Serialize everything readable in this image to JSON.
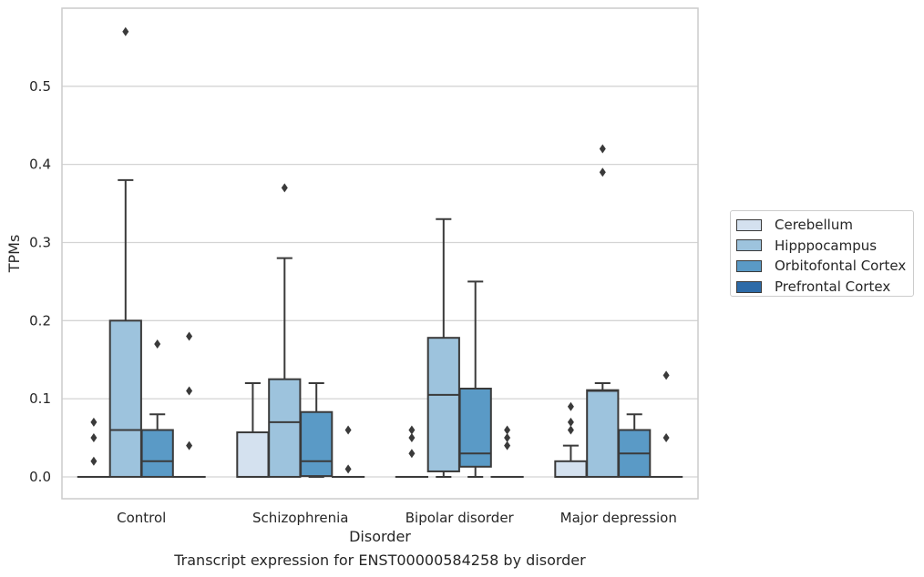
{
  "caption": "Transcript expression for ENST00000584258 by disorder",
  "chart_data": {
    "type": "box",
    "title": "",
    "xlabel": "Disorder",
    "ylabel": "TPMs",
    "ylim": [
      -0.028,
      0.6
    ],
    "yticks": [
      0.0,
      0.1,
      0.2,
      0.3,
      0.4,
      0.5
    ],
    "ytick_labels": [
      "0.0",
      "0.1",
      "0.2",
      "0.3",
      "0.4",
      "0.5"
    ],
    "grid": "horizontal",
    "legend_position": "right",
    "categories": [
      "Control",
      "Schizophrenia",
      "Bipolar disorder",
      "Major depression"
    ],
    "series": [
      {
        "name": "Cerebellum",
        "color": "#d4e1ef",
        "boxes": [
          {
            "q1": 0,
            "median": 0,
            "q3": 0,
            "whisker_low": 0,
            "whisker_high": 0,
            "outliers": [
              0.02,
              0.05,
              0.07
            ]
          },
          {
            "q1": 0,
            "median": 0,
            "q3": 0.057,
            "whisker_low": 0,
            "whisker_high": 0.12,
            "outliers": []
          },
          {
            "q1": 0,
            "median": 0,
            "q3": 0,
            "whisker_low": 0,
            "whisker_high": 0,
            "outliers": [
              0.03,
              0.05,
              0.06
            ]
          },
          {
            "q1": 0,
            "median": 0,
            "q3": 0.02,
            "whisker_low": 0,
            "whisker_high": 0.04,
            "outliers": [
              0.06,
              0.07,
              0.09
            ]
          }
        ]
      },
      {
        "name": "Hipppocampus",
        "color": "#9dc3dd",
        "boxes": [
          {
            "q1": 0,
            "median": 0.06,
            "q3": 0.2,
            "whisker_low": 0,
            "whisker_high": 0.38,
            "outliers": [
              0.57
            ]
          },
          {
            "q1": 0,
            "median": 0.07,
            "q3": 0.125,
            "whisker_low": 0,
            "whisker_high": 0.28,
            "outliers": [
              0.37
            ]
          },
          {
            "q1": 0.007,
            "median": 0.105,
            "q3": 0.178,
            "whisker_low": 0,
            "whisker_high": 0.33,
            "outliers": []
          },
          {
            "q1": 0,
            "median": 0.11,
            "q3": 0.111,
            "whisker_low": 0,
            "whisker_high": 0.12,
            "outliers": [
              0.39,
              0.42
            ]
          }
        ]
      },
      {
        "name": "Orbitofontal Cortex",
        "color": "#5a9ac6",
        "boxes": [
          {
            "q1": 0,
            "median": 0.02,
            "q3": 0.06,
            "whisker_low": 0,
            "whisker_high": 0.08,
            "outliers": [
              0.17
            ]
          },
          {
            "q1": 0.001,
            "median": 0.02,
            "q3": 0.083,
            "whisker_low": 0,
            "whisker_high": 0.12,
            "outliers": []
          },
          {
            "q1": 0.013,
            "median": 0.03,
            "q3": 0.113,
            "whisker_low": 0,
            "whisker_high": 0.25,
            "outliers": []
          },
          {
            "q1": 0,
            "median": 0.03,
            "q3": 0.06,
            "whisker_low": 0,
            "whisker_high": 0.08,
            "outliers": []
          }
        ]
      },
      {
        "name": "Prefrontal Cortex",
        "color": "#2d6ba8",
        "boxes": [
          {
            "q1": 0,
            "median": 0,
            "q3": 0,
            "whisker_low": 0,
            "whisker_high": 0,
            "outliers": [
              0.04,
              0.11,
              0.18
            ]
          },
          {
            "q1": 0,
            "median": 0,
            "q3": 0,
            "whisker_low": 0,
            "whisker_high": 0,
            "outliers": [
              0.01,
              0.06
            ]
          },
          {
            "q1": 0,
            "median": 0,
            "q3": 0,
            "whisker_low": 0,
            "whisker_high": 0,
            "outliers": [
              0.04,
              0.05,
              0.06
            ]
          },
          {
            "q1": 0,
            "median": 0,
            "q3": 0,
            "whisker_low": 0,
            "whisker_high": 0,
            "outliers": [
              0.05,
              0.13
            ]
          }
        ]
      }
    ]
  }
}
